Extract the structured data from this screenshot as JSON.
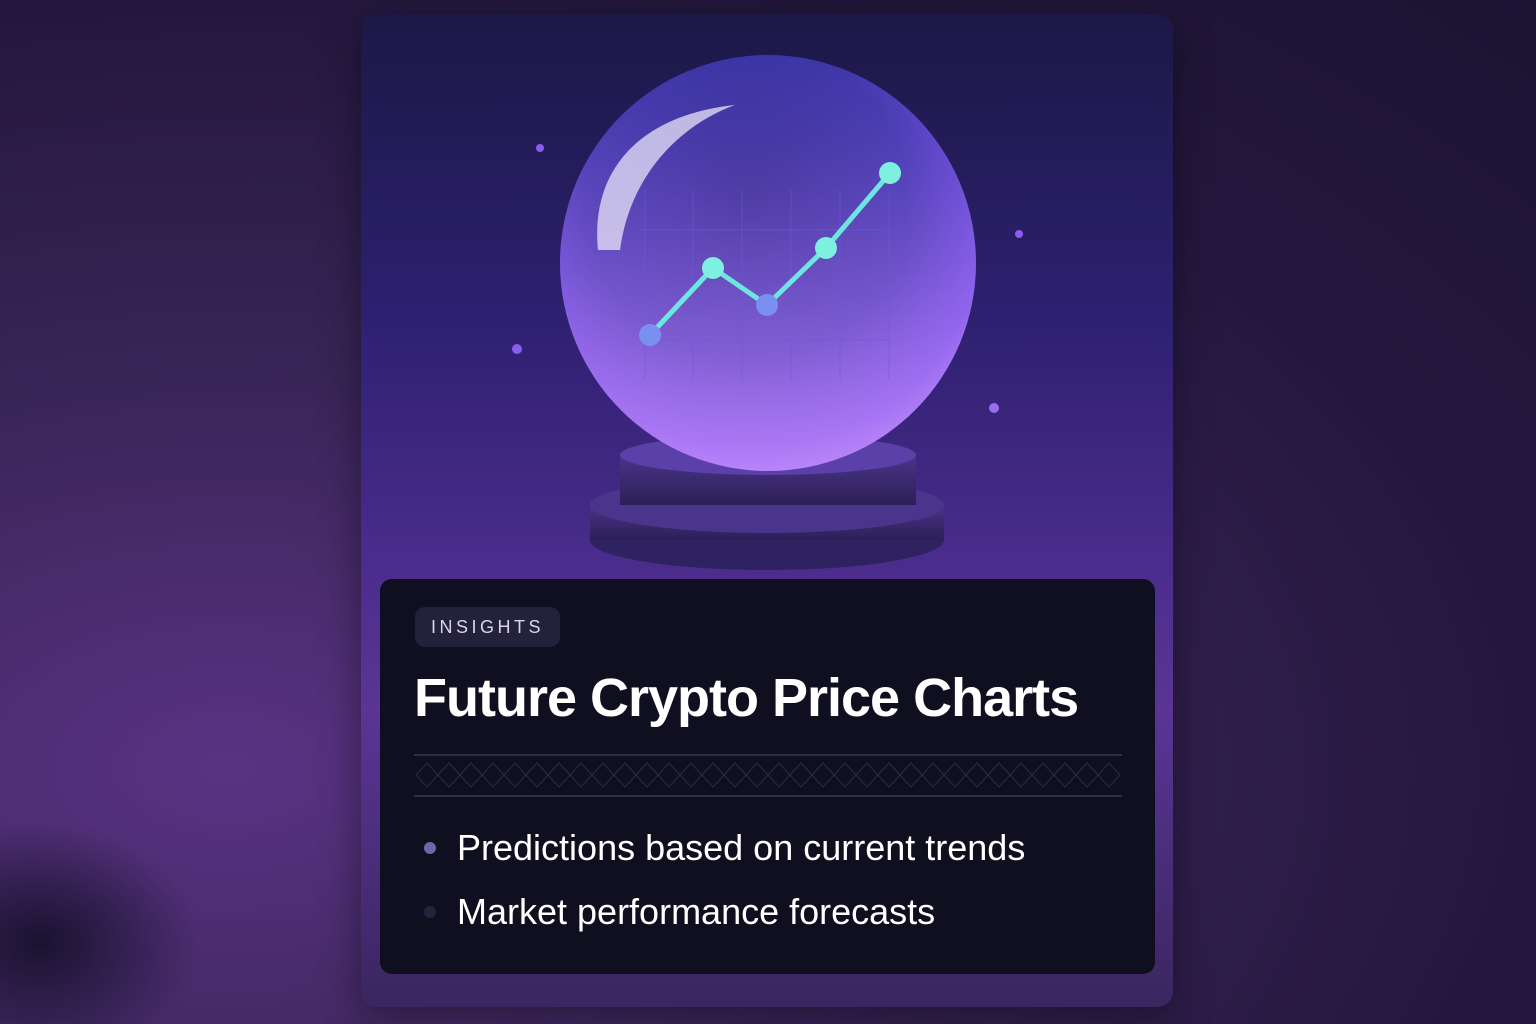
{
  "card": {
    "badge": "INSIGHTS",
    "title": "Future Crypto Price Charts",
    "bullets": [
      {
        "text": "Predictions based on current trends",
        "dot_color": "#6a68a8"
      },
      {
        "text": "Market performance forecasts",
        "dot_color": "#24223c"
      }
    ]
  },
  "illustration": {
    "subject": "crystal-ball-with-rising-line-chart",
    "line_color": "#6ee6e0",
    "accent": "#7a4ee0"
  }
}
